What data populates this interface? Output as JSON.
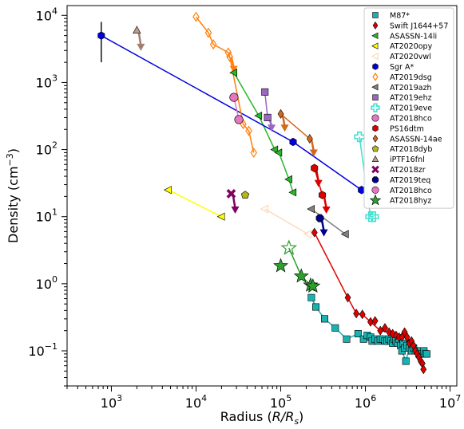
{
  "chart_data": {
    "type": "scatter",
    "xscale": "log",
    "yscale": "log",
    "xlim": [
      300,
      12000000
    ],
    "ylim": [
      0.03,
      14000
    ],
    "xlabel_main": "Radius (",
    "xlabel_italic": "R/R",
    "xlabel_sub": "s",
    "xlabel_end": ")",
    "ylabel_main": "Density (cm",
    "ylabel_sup": "−3",
    "ylabel_end": ")",
    "xticks": [
      {
        "value": 1000,
        "base": "10",
        "exp": "3"
      },
      {
        "value": 10000,
        "base": "10",
        "exp": "4"
      },
      {
        "value": 100000,
        "base": "10",
        "exp": "5"
      },
      {
        "value": 1000000,
        "base": "10",
        "exp": "6"
      },
      {
        "value": 10000000,
        "base": "10",
        "exp": "7"
      }
    ],
    "yticks": [
      {
        "value": 0.1,
        "base": "10",
        "exp": "−1"
      },
      {
        "value": 1,
        "base": "10",
        "exp": "0"
      },
      {
        "value": 10,
        "base": "10",
        "exp": "1"
      },
      {
        "value": 100,
        "base": "10",
        "exp": "2"
      },
      {
        "value": 1000,
        "base": "10",
        "exp": "3"
      },
      {
        "value": 10000,
        "base": "10",
        "exp": "4"
      }
    ],
    "legend_position": "upper-right",
    "series": [
      {
        "name": "M87*",
        "color": "#1ab1b1",
        "marker": "square",
        "filled": true,
        "points": [
          [
            230000,
            0.62
          ],
          [
            260000,
            0.45
          ],
          [
            330000,
            0.3
          ],
          [
            440000,
            0.22
          ],
          [
            600000,
            0.15
          ],
          [
            820000,
            0.18
          ],
          [
            950000,
            0.15
          ],
          [
            1050000,
            0.17
          ],
          [
            1150000,
            0.16
          ],
          [
            1200000,
            0.14
          ],
          [
            1300000,
            0.15
          ],
          [
            1400000,
            0.14
          ],
          [
            1500000,
            0.15
          ],
          [
            1600000,
            0.15
          ],
          [
            1700000,
            0.14
          ],
          [
            1800000,
            0.14
          ],
          [
            1900000,
            0.15
          ],
          [
            2000000,
            0.14
          ],
          [
            2100000,
            0.13
          ],
          [
            2200000,
            0.15
          ],
          [
            2300000,
            0.14
          ],
          [
            2400000,
            0.13
          ],
          [
            2500000,
            0.15
          ],
          [
            2600000,
            0.12
          ],
          [
            2700000,
            0.1
          ],
          [
            2800000,
            0.13
          ],
          [
            2900000,
            0.11
          ],
          [
            3000000,
            0.07
          ],
          [
            3100000,
            0.12
          ],
          [
            3300000,
            0.11
          ],
          [
            3500000,
            0.1
          ],
          [
            3700000,
            0.11
          ],
          [
            3900000,
            0.1
          ],
          [
            4100000,
            0.1
          ],
          [
            4300000,
            0.09
          ],
          [
            4500000,
            0.1
          ],
          [
            4700000,
            0.09
          ],
          [
            4900000,
            0.1
          ],
          [
            5100000,
            0.09
          ],
          [
            5300000,
            0.09
          ]
        ]
      },
      {
        "name": "Swift J1644+57",
        "color": "#e00000",
        "marker": "diamond",
        "filled": true,
        "points": [
          [
            250000,
            5.8
          ],
          [
            620000,
            0.62
          ],
          [
            780000,
            0.36
          ],
          [
            920000,
            0.35
          ],
          [
            1150000,
            0.27
          ],
          [
            1300000,
            0.28
          ],
          [
            1500000,
            0.2
          ],
          [
            1700000,
            0.22
          ],
          [
            1900000,
            0.19
          ],
          [
            2100000,
            0.18
          ],
          [
            2300000,
            0.17
          ],
          [
            2500000,
            0.16
          ],
          [
            2700000,
            0.16
          ],
          [
            2900000,
            0.19
          ],
          [
            3100000,
            0.16
          ],
          [
            3300000,
            0.13
          ],
          [
            3500000,
            0.14
          ],
          [
            3700000,
            0.12
          ],
          [
            3900000,
            0.1
          ],
          [
            4100000,
            0.09
          ],
          [
            4300000,
            0.08
          ],
          [
            4500000,
            0.07
          ],
          [
            4700000,
            0.065
          ],
          [
            4850000,
            0.053
          ]
        ]
      },
      {
        "name": "ASASSN-14li",
        "color": "#2ab52a",
        "marker": "triangle-left",
        "filled": true,
        "points": [
          [
            28000,
            1400
          ],
          [
            55000,
            320
          ],
          [
            85000,
            100
          ],
          [
            95000,
            90
          ],
          [
            125000,
            36
          ],
          [
            140000,
            23
          ]
        ]
      },
      {
        "name": "AT2020opy",
        "color": "#ffff00",
        "marker": "triangle-left",
        "filled": true,
        "points": [
          [
            4700,
            25
          ],
          [
            20000,
            10
          ]
        ]
      },
      {
        "name": "AT2020vwl",
        "color": "#ffd9b8",
        "marker": "triangle-left",
        "filled": false,
        "points": [
          [
            65000,
            13
          ],
          [
            210000,
            5.5
          ]
        ]
      },
      {
        "name": "Sgr A*",
        "color": "#0000dd",
        "marker": "hexagon",
        "filled": true,
        "points": [
          [
            760,
            5000
          ],
          [
            140000,
            130
          ],
          [
            900000,
            25
          ]
        ],
        "yerr_point": [
          760,
          2000,
          8000
        ]
      },
      {
        "name": "AT2019dsg",
        "color": "#ff7f0e",
        "marker": "diamond",
        "filled": false,
        "points": [
          [
            10000,
            9500
          ],
          [
            14000,
            5500
          ],
          [
            16000,
            3700
          ],
          [
            24000,
            2800
          ],
          [
            25000,
            2400
          ],
          [
            36000,
            240
          ],
          [
            42000,
            190
          ],
          [
            48000,
            90
          ]
        ]
      },
      {
        "name": "AT2019azh",
        "color": "#808080",
        "marker": "triangle-left",
        "filled": true,
        "points": [
          [
            230000,
            13
          ],
          [
            580000,
            5.5
          ]
        ]
      },
      {
        "name": "AT2019ehz",
        "color": "#9b67c2",
        "marker": "square",
        "filled": true,
        "points": [
          [
            65000,
            720
          ],
          [
            70000,
            300
          ]
        ]
      },
      {
        "name": "AT2019eve",
        "color": "#40e0d0",
        "marker": "plus",
        "filled": false,
        "points": [
          [
            850000,
            155
          ],
          [
            1150000,
            10
          ],
          [
            1250000,
            10
          ]
        ]
      },
      {
        "name": "AT2018hco",
        "color": "#e377c2",
        "marker": "circle",
        "filled": true,
        "points": [
          [
            28000,
            600
          ],
          [
            32000,
            280
          ]
        ]
      },
      {
        "name": "PS16dtm",
        "color": "#dd0000",
        "marker": "hexagon",
        "filled": true,
        "points": [
          [
            250000,
            53
          ],
          [
            310000,
            21
          ]
        ]
      },
      {
        "name": "ASASSN-14ae",
        "color": "#d2691e",
        "marker": "diamond",
        "filled": true,
        "points": [
          [
            100000,
            340
          ],
          [
            220000,
            145
          ]
        ]
      },
      {
        "name": "AT2018dyb",
        "color": "#b5b520",
        "marker": "pentagon",
        "filled": true,
        "points": [
          [
            38000,
            21
          ]
        ]
      },
      {
        "name": "iPTF16fnl",
        "color": "#c29b8f",
        "marker": "triangle-up",
        "filled": true,
        "points": [
          [
            2000,
            6000
          ]
        ]
      },
      {
        "name": "AT2018zr",
        "color": "#800060",
        "marker": "x",
        "filled": true,
        "points": [
          [
            26000,
            22
          ]
        ]
      },
      {
        "name": "AT2019teq",
        "color": "#00008b",
        "marker": "octagon",
        "filled": true,
        "points": [
          [
            290000,
            9.5
          ]
        ]
      },
      {
        "name": "AT2018hco",
        "color": "#e377c2",
        "marker": "circle",
        "filled": true,
        "legend_only": true,
        "points": []
      },
      {
        "name": "AT2018hyz",
        "color": "#2ca02c",
        "marker": "star",
        "filled": true,
        "points": [
          [
            100000,
            1.85
          ],
          [
            175000,
            1.3
          ],
          [
            225000,
            0.95
          ],
          [
            240000,
            0.92
          ]
        ],
        "hollow_points": [
          [
            125000,
            3.4
          ]
        ]
      }
    ],
    "line_segments": [
      {
        "series": "M87*",
        "color": "#1ab1b1",
        "points": [
          [
            230000,
            0.62
          ],
          [
            260000,
            0.45
          ],
          [
            330000,
            0.3
          ],
          [
            440000,
            0.22
          ],
          [
            600000,
            0.15
          ],
          [
            820000,
            0.18
          ],
          [
            950000,
            0.15
          ],
          [
            1200000,
            0.14
          ],
          [
            1500000,
            0.15
          ],
          [
            2000000,
            0.14
          ],
          [
            2500000,
            0.15
          ],
          [
            2700000,
            0.1
          ],
          [
            3000000,
            0.07
          ],
          [
            3300000,
            0.11
          ],
          [
            3700000,
            0.11
          ],
          [
            4300000,
            0.09
          ],
          [
            4700000,
            0.09
          ],
          [
            5300000,
            0.09
          ]
        ]
      },
      {
        "series": "Swift J1644+57",
        "color": "#e00000",
        "points": [
          [
            250000,
            5.8
          ],
          [
            620000,
            0.62
          ],
          [
            780000,
            0.36
          ],
          [
            920000,
            0.35
          ],
          [
            1150000,
            0.27
          ],
          [
            1500000,
            0.2
          ],
          [
            1900000,
            0.19
          ],
          [
            2500000,
            0.16
          ],
          [
            2900000,
            0.19
          ],
          [
            3300000,
            0.13
          ],
          [
            3900000,
            0.1
          ],
          [
            4500000,
            0.07
          ],
          [
            4850000,
            0.053
          ]
        ]
      },
      {
        "series": "ASASSN-14li",
        "color": "#2ab52a",
        "points": [
          [
            28000,
            1400
          ],
          [
            55000,
            320
          ],
          [
            85000,
            100
          ],
          [
            95000,
            90
          ],
          [
            125000,
            36
          ],
          [
            140000,
            23
          ]
        ]
      },
      {
        "series": "AT2020opy",
        "color": "#ffff00",
        "points": [
          [
            4700,
            25
          ],
          [
            20000,
            10
          ]
        ]
      },
      {
        "series": "AT2020vwl",
        "color": "#ffd9b8",
        "points": [
          [
            65000,
            13
          ],
          [
            210000,
            5.5
          ]
        ]
      },
      {
        "series": "Sgr A*",
        "color": "#0000dd",
        "points": [
          [
            760,
            5000
          ],
          [
            140000,
            130
          ],
          [
            900000,
            25
          ]
        ]
      },
      {
        "series": "AT2019dsg",
        "color": "#ff7f0e",
        "points": [
          [
            10000,
            9500
          ],
          [
            14000,
            5500
          ],
          [
            16000,
            3700
          ],
          [
            24000,
            2800
          ],
          [
            25000,
            2400
          ],
          [
            36000,
            240
          ],
          [
            42000,
            190
          ],
          [
            48000,
            90
          ]
        ]
      },
      {
        "series": "AT2019azh",
        "color": "#808080",
        "points": [
          [
            230000,
            13
          ],
          [
            580000,
            5.5
          ]
        ]
      },
      {
        "series": "AT2019ehz",
        "color": "#9b67c2",
        "points": [
          [
            65000,
            720
          ],
          [
            70000,
            300
          ]
        ]
      },
      {
        "series": "AT2019eve",
        "color": "#40e0d0",
        "points": [
          [
            850000,
            155
          ],
          [
            1150000,
            10
          ],
          [
            1250000,
            10
          ]
        ]
      },
      {
        "series": "AT2018hco",
        "color": "#e377c2",
        "points": [
          [
            28000,
            600
          ],
          [
            32000,
            280
          ]
        ]
      },
      {
        "series": "PS16dtm",
        "color": "#dd0000",
        "points": [
          [
            250000,
            53
          ],
          [
            310000,
            21
          ]
        ]
      },
      {
        "series": "ASASSN-14ae",
        "color": "#d2691e",
        "points": [
          [
            100000,
            340
          ],
          [
            220000,
            145
          ]
        ]
      },
      {
        "series": "AT2018hyz",
        "color": "#2ca02c",
        "points": [
          [
            125000,
            3.4
          ],
          [
            175000,
            1.3
          ],
          [
            225000,
            0.95
          ]
        ]
      }
    ],
    "arrows": [
      {
        "series": "AT2019dsg",
        "color": "#ff7f0e",
        "x": 25000,
        "y1": 2400,
        "y2": 1500
      },
      {
        "series": "AT2019ehz",
        "color": "#9b67c2",
        "x": 70000,
        "y1": 300,
        "y2": 200
      },
      {
        "series": "ASASSN-14ae",
        "color": "#d2691e",
        "x": 100000,
        "y1": 340,
        "y2": 200
      },
      {
        "series": "ASASSN-14ae",
        "color": "#d2691e",
        "x": 220000,
        "y1": 145,
        "y2": 85
      },
      {
        "series": "iPTF16fnl",
        "color": "#a08070",
        "x": 2000,
        "y1": 6000,
        "y2": 3200
      },
      {
        "series": "AT2018zr",
        "color": "#800060",
        "x": 26000,
        "y1": 22,
        "y2": 12
      },
      {
        "series": "AT2019teq",
        "color": "#00008b",
        "x": 290000,
        "y1": 9.5,
        "y2": 5.5
      },
      {
        "series": "PS16dtm",
        "color": "#dd0000",
        "x": 250000,
        "y1": 53,
        "y2": 30
      },
      {
        "series": "PS16dtm",
        "color": "#dd0000",
        "x": 310000,
        "y1": 21,
        "y2": 12
      }
    ]
  }
}
